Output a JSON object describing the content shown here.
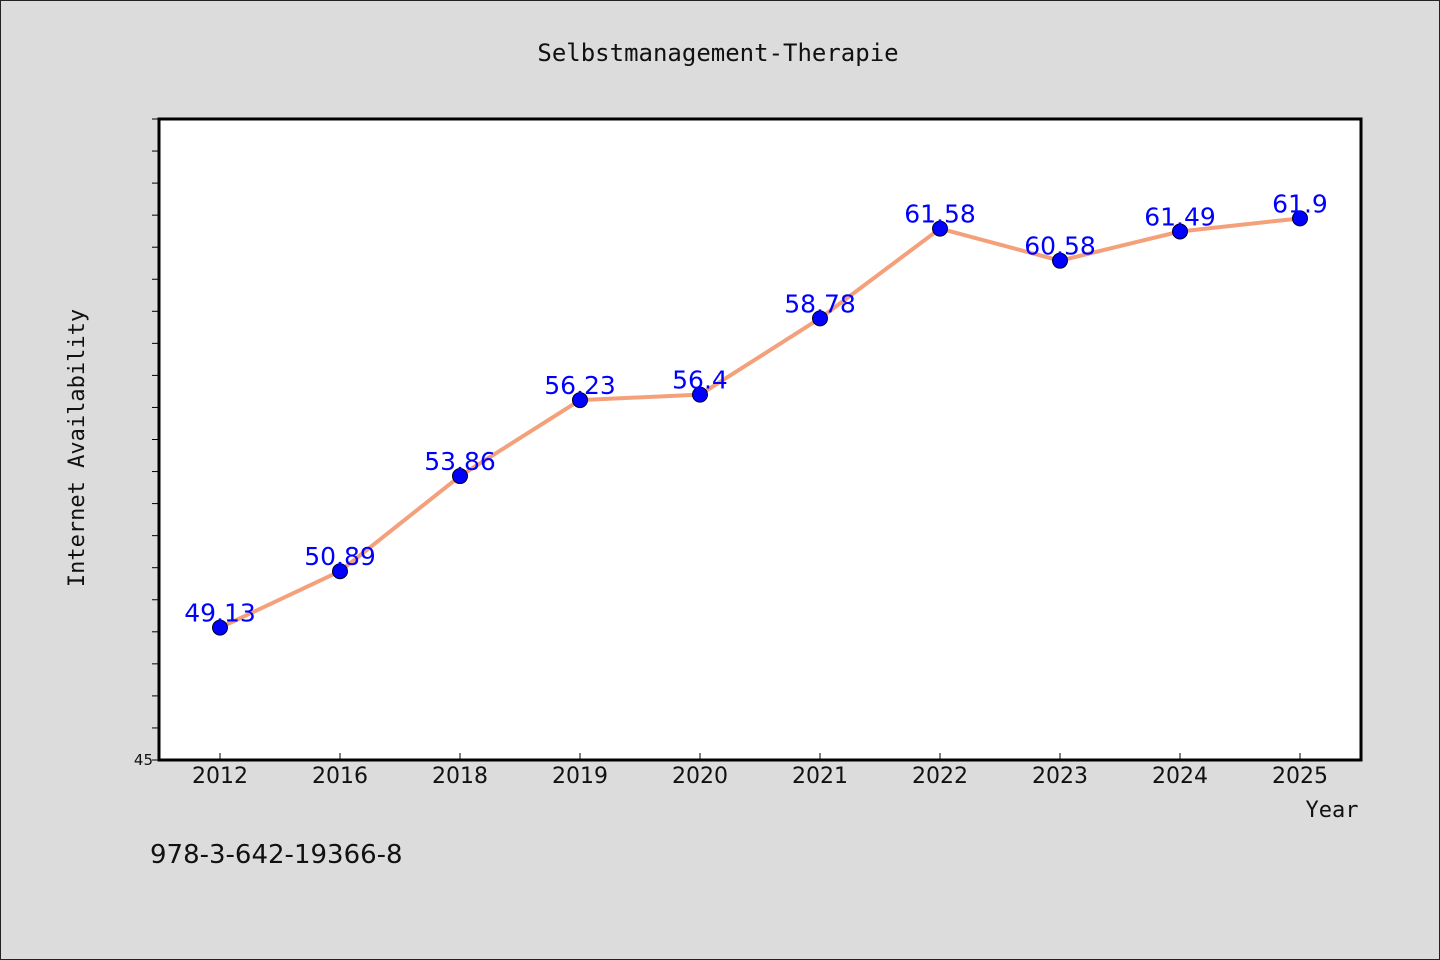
{
  "footer_code": "978-3-642-19366-8",
  "chart_data": {
    "type": "line",
    "title": "Selbstmanagement-Therapie",
    "xlabel": "Year",
    "ylabel": "Internet Availability",
    "categories": [
      "2012",
      "2016",
      "2018",
      "2019",
      "2020",
      "2021",
      "2022",
      "2023",
      "2024",
      "2025"
    ],
    "series": [
      {
        "values": [
          49.13,
          50.89,
          53.86,
          56.23,
          56.4,
          58.78,
          61.58,
          60.58,
          61.49,
          61.9
        ],
        "labels": [
          "49.13",
          "50.89",
          "53.86",
          "56.23",
          "56.4",
          "58.78",
          "61.58",
          "60.58",
          "61.49",
          "61.9"
        ],
        "line_color": "#f4a07a",
        "marker_color": "#0000ff"
      }
    ],
    "ylim": [
      45,
      65
    ],
    "ytick_labels": [
      "45"
    ],
    "minor_ytick_step": 1,
    "grid": false,
    "background": "#ffffff",
    "page_background": "#dcdcdc"
  }
}
